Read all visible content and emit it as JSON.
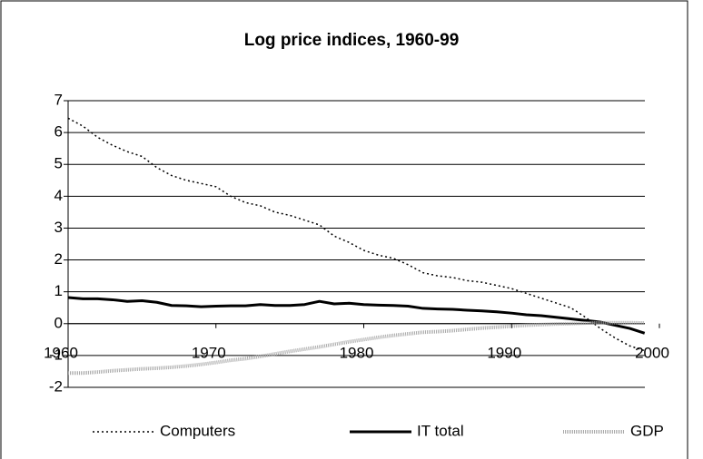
{
  "chart_data": {
    "type": "line",
    "title": "Log price indices, 1960-99",
    "x": [
      1960,
      1961,
      1962,
      1963,
      1964,
      1965,
      1966,
      1967,
      1968,
      1969,
      1970,
      1971,
      1972,
      1973,
      1974,
      1975,
      1976,
      1977,
      1978,
      1979,
      1980,
      1981,
      1982,
      1983,
      1984,
      1985,
      1986,
      1987,
      1988,
      1989,
      1990,
      1991,
      1992,
      1993,
      1994,
      1995,
      1996,
      1997,
      1998,
      1999
    ],
    "series": [
      {
        "name": "Computers",
        "color": "#000000",
        "values": [
          6.45,
          6.2,
          5.85,
          5.6,
          5.4,
          5.25,
          4.9,
          4.65,
          4.5,
          4.4,
          4.3,
          4.0,
          3.8,
          3.7,
          3.5,
          3.4,
          3.25,
          3.1,
          2.75,
          2.55,
          2.3,
          2.15,
          2.05,
          1.85,
          1.6,
          1.5,
          1.45,
          1.35,
          1.3,
          1.2,
          1.1,
          0.95,
          0.8,
          0.65,
          0.5,
          0.2,
          -0.15,
          -0.45,
          -0.7,
          -0.85
        ]
      },
      {
        "name": "IT total",
        "color": "#000000",
        "values": [
          0.82,
          0.78,
          0.78,
          0.75,
          0.7,
          0.72,
          0.67,
          0.57,
          0.56,
          0.53,
          0.55,
          0.56,
          0.56,
          0.6,
          0.57,
          0.57,
          0.6,
          0.7,
          0.62,
          0.64,
          0.6,
          0.58,
          0.57,
          0.55,
          0.48,
          0.46,
          0.45,
          0.42,
          0.4,
          0.37,
          0.33,
          0.28,
          0.25,
          0.2,
          0.15,
          0.1,
          0.05,
          -0.05,
          -0.15,
          -0.3
        ]
      },
      {
        "name": "GDP",
        "color": "#aaaaaa",
        "values": [
          -1.55,
          -1.55,
          -1.52,
          -1.48,
          -1.45,
          -1.42,
          -1.4,
          -1.37,
          -1.33,
          -1.28,
          -1.22,
          -1.15,
          -1.1,
          -1.03,
          -0.95,
          -0.87,
          -0.8,
          -0.73,
          -0.65,
          -0.57,
          -0.5,
          -0.43,
          -0.37,
          -0.32,
          -0.27,
          -0.25,
          -0.22,
          -0.18,
          -0.14,
          -0.11,
          -0.08,
          -0.05,
          -0.03,
          -0.01,
          0,
          0.02,
          0.03,
          0.03,
          0.03,
          0.02
        ]
      }
    ],
    "xlim": [
      1960,
      2000
    ],
    "xticks": [
      1960,
      1970,
      1980,
      1990,
      2000
    ],
    "ylim": [
      -2,
      7
    ],
    "yticks": [
      -2,
      -1,
      0,
      1,
      2,
      3,
      4,
      5,
      6,
      7
    ],
    "grid": true,
    "legend": "bottom"
  }
}
